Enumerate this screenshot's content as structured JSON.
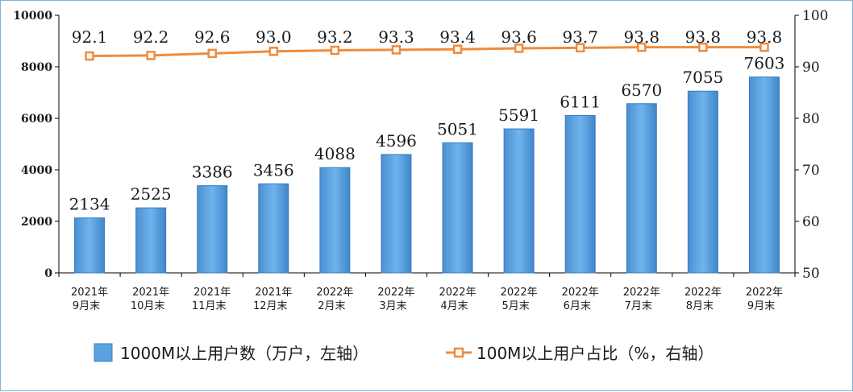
{
  "chart_data": {
    "type": "bar",
    "categories": [
      [
        "2021年",
        "9月末"
      ],
      [
        "2021年",
        "10月末"
      ],
      [
        "2021年",
        "11月末"
      ],
      [
        "2021年",
        "12月末"
      ],
      [
        "2022年",
        "2月末"
      ],
      [
        "2022年",
        "3月末"
      ],
      [
        "2022年",
        "4月末"
      ],
      [
        "2022年",
        "5月末"
      ],
      [
        "2022年",
        "6月末"
      ],
      [
        "2022年",
        "7月末"
      ],
      [
        "2022年",
        "8月末"
      ],
      [
        "2022年",
        "9月末"
      ]
    ],
    "series": [
      {
        "name": "1000M以上用户数（万户，左轴）",
        "type": "bar",
        "axis": "left",
        "color": "#5ba3e0",
        "values": [
          2134,
          2525,
          3386,
          3456,
          4088,
          4596,
          5051,
          5591,
          6111,
          6570,
          7055,
          7603
        ]
      },
      {
        "name": "100M以上用户占比（%，右轴）",
        "type": "line",
        "axis": "right",
        "color": "#f08b3b",
        "values": [
          92.1,
          92.2,
          92.6,
          93.0,
          93.2,
          93.3,
          93.4,
          93.6,
          93.7,
          93.8,
          93.8,
          93.8
        ]
      }
    ],
    "line_labels": [
      "92.1",
      "92.2",
      "92.6",
      "93.0",
      "93.2",
      "93.3",
      "93.4",
      "93.6",
      "93.7",
      "93.8",
      "93.8",
      "93.8"
    ],
    "y_left": {
      "min": 0,
      "max": 10000,
      "ticks": [
        0,
        2000,
        4000,
        6000,
        8000,
        10000
      ]
    },
    "y_right": {
      "min": 50,
      "max": 100,
      "ticks": [
        50,
        60,
        70,
        80,
        90,
        100
      ]
    },
    "grid": false,
    "legend": "bottom"
  }
}
